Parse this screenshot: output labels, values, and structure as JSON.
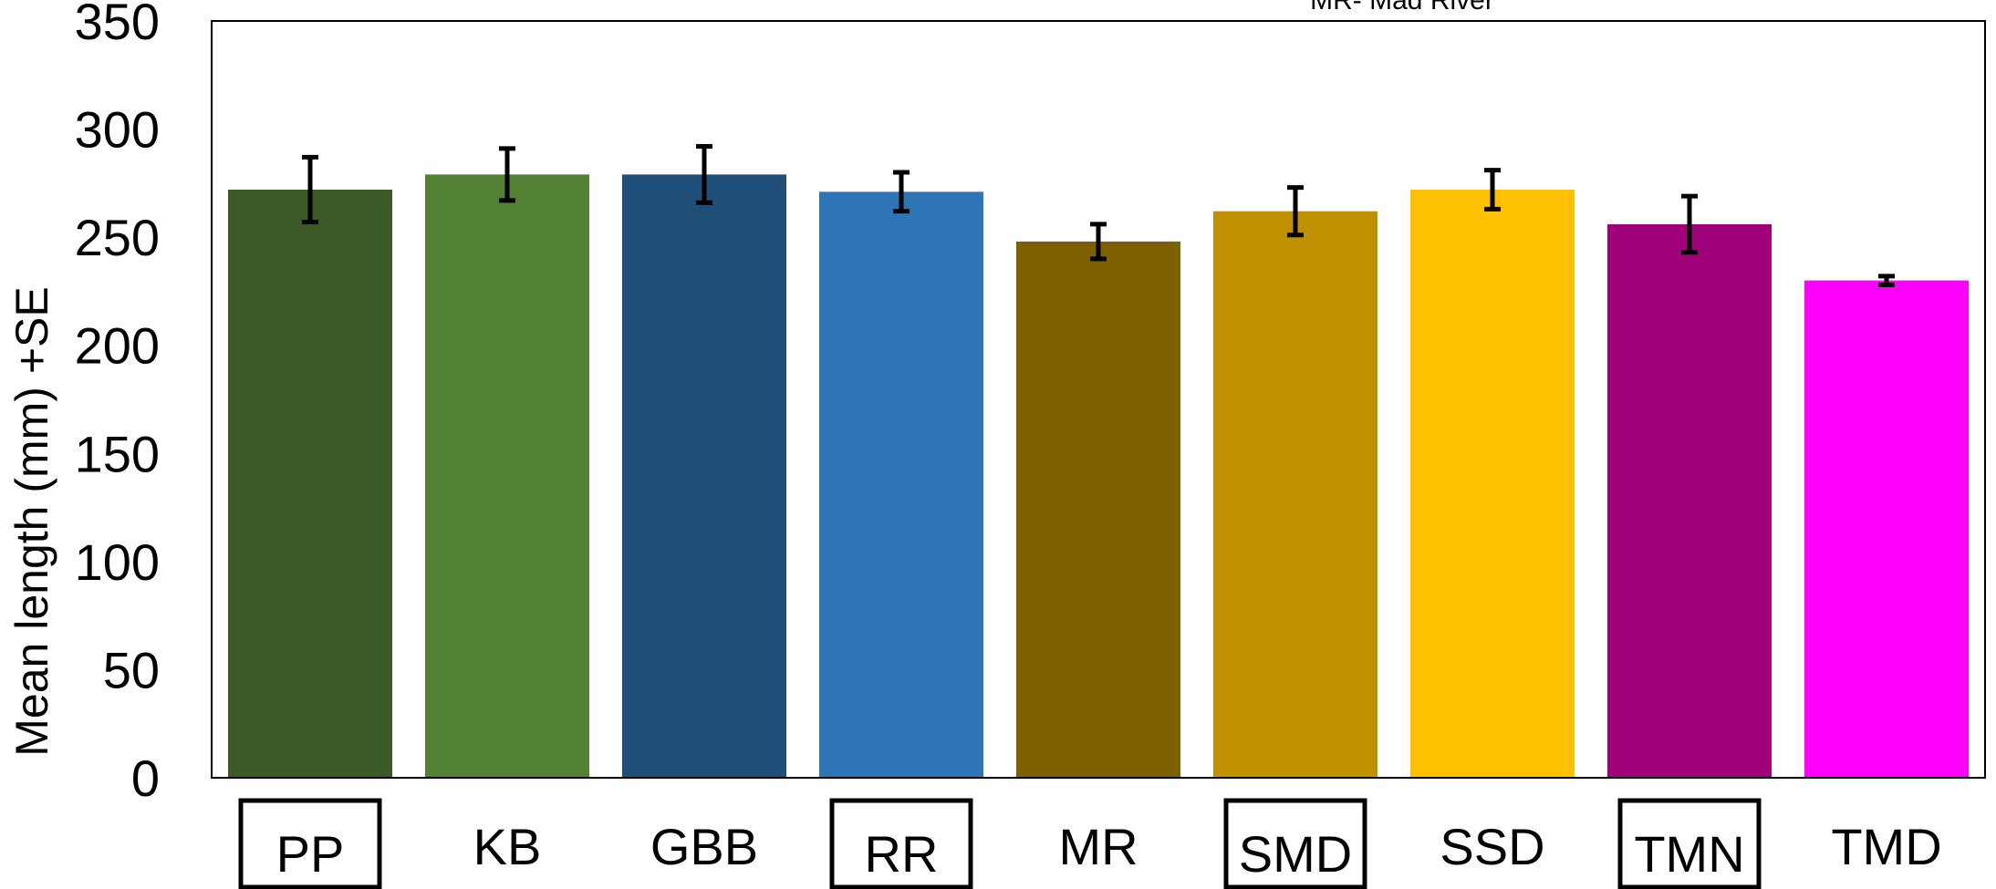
{
  "chart_data": {
    "type": "bar",
    "categories": [
      "PP",
      "KB",
      "GBB",
      "RR",
      "MR",
      "SMD",
      "SSD",
      "TMN",
      "TMD"
    ],
    "boxed_categories": [
      "PP",
      "RR",
      "SMD",
      "TMN"
    ],
    "values": [
      272,
      279,
      279,
      271,
      248,
      262,
      272,
      256,
      230
    ],
    "errors": [
      15,
      12,
      13,
      9,
      8,
      11,
      9,
      13,
      2
    ],
    "colors": [
      "#3B5A25",
      "#548235",
      "#1F4E79",
      "#2E75B6",
      "#7F6000",
      "#BF9000",
      "#FFC000",
      "#A0007A",
      "#FF00FF"
    ],
    "ylabel": "Mean length (mm) +SE",
    "ylim": [
      0,
      350
    ],
    "yticks": [
      0,
      50,
      100,
      150,
      200,
      250,
      300,
      350
    ],
    "annotation": "MR- Mad River",
    "grid": false
  }
}
